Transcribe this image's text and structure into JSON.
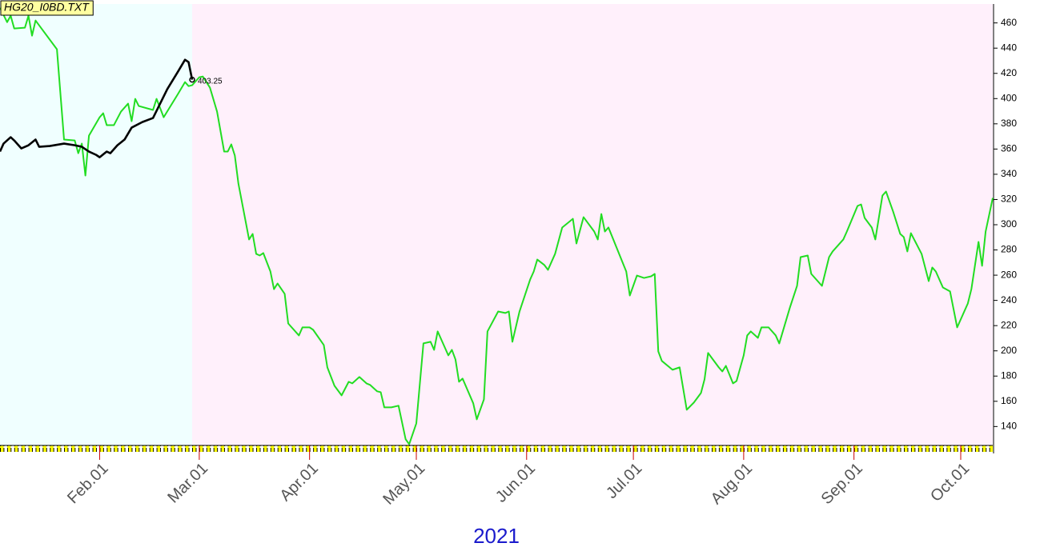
{
  "chart_data": {
    "type": "line",
    "title": "HG20_I0BD.TXT",
    "xlabel": "2021",
    "annotation": "403.25",
    "xlim": [
      "2021-01-04",
      "2021-10-10"
    ],
    "ylim": [
      125,
      475
    ],
    "yticks": [
      140,
      160,
      180,
      200,
      220,
      240,
      260,
      280,
      300,
      320,
      340,
      360,
      380,
      400,
      420,
      440,
      460
    ],
    "xticks": [
      {
        "value": "2021-02-01",
        "label": "Feb.01"
      },
      {
        "value": "2021-03-01",
        "label": "Mar.01"
      },
      {
        "value": "2021-04-01",
        "label": "Apr.01"
      },
      {
        "value": "2021-05-01",
        "label": "May.01"
      },
      {
        "value": "2021-06-01",
        "label": "Jun.01"
      },
      {
        "value": "2021-07-01",
        "label": "Jul.01"
      },
      {
        "value": "2021-08-01",
        "label": "Aug.01"
      },
      {
        "value": "2021-09-01",
        "label": "Sep.01"
      },
      {
        "value": "2021-10-01",
        "label": "Oct.01"
      }
    ],
    "series": [
      {
        "color": "#22dd22",
        "x": [
          "2021-01-04",
          "2021-01-06",
          "2021-01-07",
          "2021-01-08",
          "2021-01-11",
          "2021-01-12",
          "2021-01-13",
          "2021-01-14",
          "2021-01-20",
          "2021-01-22",
          "2021-01-25",
          "2021-01-26",
          "2021-01-27",
          "2021-01-28",
          "2021-01-29",
          "2021-02-01",
          "2021-02-02",
          "2021-02-03",
          "2021-02-05",
          "2021-02-07",
          "2021-02-09",
          "2021-02-10",
          "2021-02-11",
          "2021-02-12",
          "2021-02-16",
          "2021-02-17",
          "2021-02-19",
          "2021-02-23",
          "2021-02-25",
          "2021-02-26",
          "2021-02-27",
          "2021-03-01",
          "2021-03-02",
          "2021-03-04",
          "2021-03-06",
          "2021-03-08",
          "2021-03-09",
          "2021-03-10",
          "2021-03-11",
          "2021-03-12",
          "2021-03-15",
          "2021-03-16",
          "2021-03-17",
          "2021-03-18",
          "2021-03-19",
          "2021-03-21",
          "2021-03-22",
          "2021-03-23",
          "2021-03-25",
          "2021-03-26",
          "2021-03-29",
          "2021-03-30",
          "2021-04-01",
          "2021-04-02",
          "2021-04-05",
          "2021-04-06",
          "2021-04-08",
          "2021-04-10",
          "2021-04-12",
          "2021-04-13",
          "2021-04-15",
          "2021-04-17",
          "2021-04-18",
          "2021-04-20",
          "2021-04-21",
          "2021-04-22",
          "2021-04-24",
          "2021-04-26",
          "2021-04-28",
          "2021-04-29",
          "2021-05-01",
          "2021-05-03",
          "2021-05-05",
          "2021-05-06",
          "2021-05-07",
          "2021-05-08",
          "2021-05-10",
          "2021-05-11",
          "2021-05-12",
          "2021-05-13",
          "2021-05-14",
          "2021-05-17",
          "2021-05-18",
          "2021-05-20",
          "2021-05-21",
          "2021-05-24",
          "2021-05-26",
          "2021-05-27",
          "2021-05-28",
          "2021-05-30",
          "2021-06-02",
          "2021-06-03",
          "2021-06-04",
          "2021-06-06",
          "2021-06-07",
          "2021-06-09",
          "2021-06-11",
          "2021-06-14",
          "2021-06-15",
          "2021-06-17",
          "2021-06-20",
          "2021-06-21",
          "2021-06-22",
          "2021-06-23",
          "2021-06-24",
          "2021-06-29",
          "2021-06-30",
          "2021-07-02",
          "2021-07-04",
          "2021-07-06",
          "2021-07-07",
          "2021-07-08",
          "2021-07-09",
          "2021-07-12",
          "2021-07-14",
          "2021-07-16",
          "2021-07-18",
          "2021-07-20",
          "2021-07-21",
          "2021-07-22",
          "2021-07-23",
          "2021-07-25",
          "2021-07-26",
          "2021-07-27",
          "2021-07-29",
          "2021-07-30",
          "2021-08-01",
          "2021-08-02",
          "2021-08-03",
          "2021-08-05",
          "2021-08-06",
          "2021-08-08",
          "2021-08-10",
          "2021-08-11",
          "2021-08-14",
          "2021-08-16",
          "2021-08-17",
          "2021-08-19",
          "2021-08-20",
          "2021-08-23",
          "2021-08-25",
          "2021-08-26",
          "2021-08-29",
          "2021-08-30",
          "2021-09-02",
          "2021-09-03",
          "2021-09-04",
          "2021-09-06",
          "2021-09-07",
          "2021-09-09",
          "2021-09-10",
          "2021-09-12",
          "2021-09-14",
          "2021-09-15",
          "2021-09-16",
          "2021-09-17",
          "2021-09-20",
          "2021-09-22",
          "2021-09-23",
          "2021-09-24",
          "2021-09-26",
          "2021-09-28",
          "2021-09-30",
          "2021-10-03",
          "2021-10-04",
          "2021-10-06",
          "2021-10-07",
          "2021-10-08",
          "2021-10-10"
        ],
        "values": [
          472.0,
          460.6,
          465.7,
          455.6,
          456.2,
          465.7,
          449.9,
          461.9,
          439.1,
          367.5,
          366.8,
          356.7,
          364.3,
          339.0,
          370.6,
          385.2,
          388.4,
          378.9,
          378.9,
          389.7,
          396.0,
          382.1,
          399.8,
          394.1,
          391.0,
          399.8,
          385.2,
          403.6,
          413.1,
          409.9,
          410.6,
          416.9,
          417.5,
          408.7,
          389.7,
          358.0,
          358.0,
          363.7,
          354.8,
          332.6,
          288.3,
          292.7,
          276.9,
          275.6,
          277.5,
          262.9,
          248.9,
          253.4,
          245.2,
          221.7,
          212.2,
          218.6,
          218.6,
          216.7,
          204.6,
          186.9,
          172.3,
          164.7,
          175.5,
          174.2,
          179.3,
          174.2,
          173.0,
          167.9,
          167.2,
          155.2,
          155.2,
          156.5,
          129.9,
          126.0,
          142.5,
          205.9,
          207.2,
          200.8,
          215.4,
          209.1,
          196.4,
          200.8,
          193.2,
          175.5,
          178.0,
          158.4,
          145.7,
          161.5,
          215.4,
          231.2,
          230.0,
          231.2,
          207.2,
          231.2,
          256.6,
          262.9,
          272.4,
          268.0,
          264.2,
          276.9,
          297.8,
          304.7,
          285.1,
          306.0,
          294.6,
          288.3,
          308.5,
          294.6,
          297.8,
          262.9,
          243.9,
          259.7,
          257.8,
          259.1,
          261.0,
          199.6,
          192.0,
          185.0,
          186.9,
          153.3,
          159.0,
          166.6,
          177.4,
          198.3,
          194.5,
          186.9,
          183.7,
          188.1,
          174.2,
          176.1,
          196.4,
          212.2,
          215.4,
          210.3,
          218.6,
          218.6,
          212.2,
          205.9,
          234.4,
          251.5,
          274.3,
          275.6,
          261.0,
          251.5,
          274.3,
          278.8,
          288.3,
          294.6,
          314.9,
          316.1,
          305.4,
          297.8,
          288.3,
          323.1,
          326.3,
          310.4,
          292.7,
          290.2,
          278.8,
          293.3,
          276.9,
          255.3,
          266.1,
          262.9,
          250.2,
          247.1,
          218.6,
          237.6,
          249.0,
          286.4,
          267.4,
          294.6,
          321.2
        ]
      },
      {
        "color": "#000000",
        "x": [
          "2021-01-04",
          "2021-01-05",
          "2021-01-07",
          "2021-01-08",
          "2021-01-10",
          "2021-01-12",
          "2021-01-14",
          "2021-01-15",
          "2021-01-18",
          "2021-01-22",
          "2021-01-25",
          "2021-01-27",
          "2021-01-29",
          "2021-01-31",
          "2021-02-01",
          "2021-02-03",
          "2021-02-04",
          "2021-02-06",
          "2021-02-08",
          "2021-02-10",
          "2021-02-13",
          "2021-02-16",
          "2021-02-18",
          "2021-02-20",
          "2021-02-23",
          "2021-02-25",
          "2021-02-26",
          "2021-02-27"
        ],
        "values": [
          358.0,
          364.3,
          369.4,
          366.8,
          360.5,
          363.0,
          367.5,
          361.8,
          362.4,
          364.3,
          363.0,
          361.8,
          358.0,
          355.4,
          353.5,
          358.0,
          356.7,
          363.0,
          367.5,
          377.0,
          381.4,
          384.6,
          396.0,
          407.4,
          421.3,
          430.8,
          428.9,
          415.0
        ]
      }
    ]
  }
}
